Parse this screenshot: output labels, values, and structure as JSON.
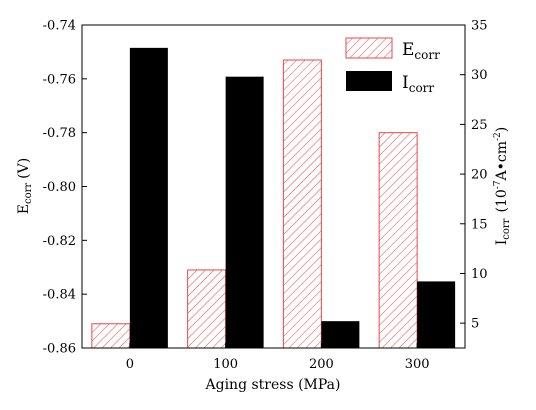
{
  "chart_data": {
    "type": "bar",
    "categories": [
      "0",
      "100",
      "200",
      "300"
    ],
    "xlabel": "Aging stress (MPa)",
    "ylabel_left": {
      "main": "E",
      "sub": "corr",
      "unit": "(V)"
    },
    "ylabel_right": {
      "main": "I",
      "sub": "corr",
      "unit_pre": "(10",
      "unit_exp1": "-7",
      "unit_mid": "A•cm",
      "unit_exp2": "-2",
      "unit_post": ")"
    },
    "ylim_left": [
      -0.86,
      -0.74
    ],
    "ylim_right": [
      2.5,
      35
    ],
    "yticks_left": [
      -0.74,
      -0.76,
      -0.78,
      -0.8,
      -0.82,
      -0.84,
      -0.86
    ],
    "yticks_left_labels": [
      "-0.74",
      "-0.76",
      "-0.78",
      "-0.80",
      "-0.82",
      "-0.84",
      "-0.86"
    ],
    "yticks_right": [
      5,
      10,
      15,
      20,
      25,
      30,
      35
    ],
    "yticks_right_labels": [
      "5",
      "10",
      "15",
      "20",
      "25",
      "30",
      "35"
    ],
    "series": [
      {
        "name": "Ecorr",
        "name_main": "E",
        "name_sub": "corr",
        "axis": "left",
        "style": "hatched",
        "color": "#e8474b",
        "values": [
          -0.851,
          -0.831,
          -0.753,
          -0.78
        ]
      },
      {
        "name": "Icorr",
        "name_main": "I",
        "name_sub": "corr",
        "axis": "right",
        "style": "solid",
        "color": "#000000",
        "values": [
          32.7,
          29.8,
          5.2,
          9.2
        ]
      }
    ],
    "legend_position": "top-right",
    "grid": false
  }
}
